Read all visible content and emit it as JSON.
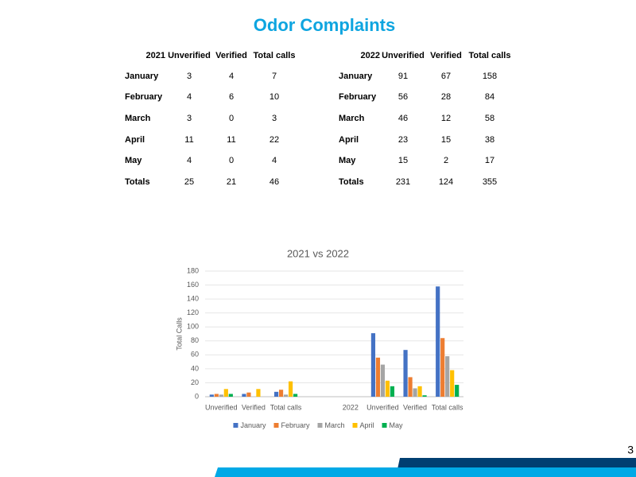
{
  "title": "Odor Complaints",
  "tables": [
    {
      "year": "2021",
      "columns": [
        "Unverified",
        "Verified",
        "Total calls"
      ],
      "rows": [
        [
          "January",
          3,
          4,
          7
        ],
        [
          "February",
          4,
          6,
          10
        ],
        [
          "March",
          3,
          0,
          3
        ],
        [
          "April",
          11,
          11,
          22
        ],
        [
          "May",
          4,
          0,
          4
        ],
        [
          "Totals",
          25,
          21,
          46
        ]
      ]
    },
    {
      "year": "2022",
      "columns": [
        "Unverified",
        "Verified",
        "Total calls"
      ],
      "rows": [
        [
          "January",
          91,
          67,
          158
        ],
        [
          "February",
          56,
          28,
          84
        ],
        [
          "March",
          46,
          12,
          58
        ],
        [
          "April",
          23,
          15,
          38
        ],
        [
          "May",
          15,
          2,
          17
        ],
        [
          "Totals",
          231,
          124,
          355
        ]
      ]
    }
  ],
  "chart_data": {
    "type": "bar",
    "title": "2021 vs 2022",
    "y_label": "Total Calls",
    "categories": [
      "Unverified",
      "Verified",
      "Total calls",
      null,
      "2022",
      "Unverified",
      "Verified",
      "Total calls"
    ],
    "series": [
      {
        "name": "January",
        "color": "#4472c4",
        "values": [
          3,
          4,
          7,
          null,
          null,
          91,
          67,
          158
        ]
      },
      {
        "name": "February",
        "color": "#ed7d31",
        "values": [
          4,
          6,
          10,
          null,
          null,
          56,
          28,
          84
        ]
      },
      {
        "name": "March",
        "color": "#a5a5a5",
        "values": [
          3,
          0,
          3,
          null,
          null,
          46,
          12,
          58
        ]
      },
      {
        "name": "April",
        "color": "#ffc000",
        "values": [
          11,
          11,
          22,
          null,
          null,
          23,
          15,
          38
        ]
      },
      {
        "name": "May",
        "color": "#00b050",
        "values": [
          4,
          0,
          4,
          null,
          null,
          15,
          2,
          17
        ]
      }
    ],
    "ylim": [
      0,
      180
    ],
    "yticks": [
      0,
      20,
      40,
      60,
      80,
      100,
      120,
      140,
      160,
      180
    ],
    "grid": true,
    "legend": "bottom"
  },
  "page_number": "3"
}
